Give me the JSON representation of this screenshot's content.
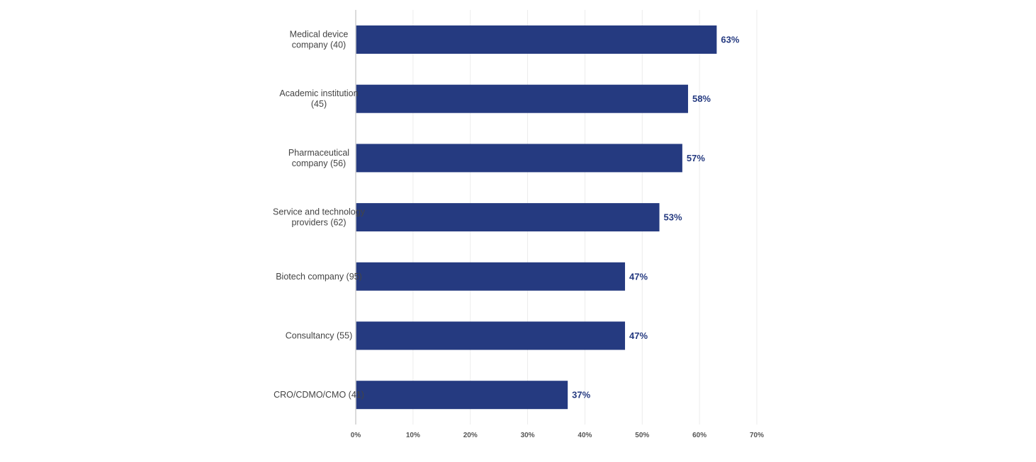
{
  "chart_data": {
    "type": "bar",
    "orientation": "horizontal",
    "categories": [
      [
        "Medical device",
        "company (40)"
      ],
      [
        "Academic institution",
        "(45)"
      ],
      [
        "Pharmaceutical",
        "company (56)"
      ],
      [
        "Service and technology",
        "providers (62)"
      ],
      [
        "Biotech company (95)"
      ],
      [
        "Consultancy (55)"
      ],
      [
        "CRO/CDMO/CMO (41)"
      ]
    ],
    "values": [
      63,
      58,
      57,
      53,
      47,
      47,
      37
    ],
    "value_labels": [
      "63%",
      "58%",
      "57%",
      "53%",
      "47%",
      "47%",
      "37%"
    ],
    "xlim": [
      0,
      70
    ],
    "x_ticks": [
      0,
      10,
      20,
      30,
      40,
      50,
      60,
      70
    ],
    "x_tick_labels": [
      "0%",
      "10%",
      "20%",
      "30%",
      "40%",
      "50%",
      "60%",
      "70%"
    ],
    "grid": true,
    "bar_color": "#253a80",
    "label_color": "#253a80",
    "title": "",
    "xlabel": "",
    "ylabel": ""
  }
}
